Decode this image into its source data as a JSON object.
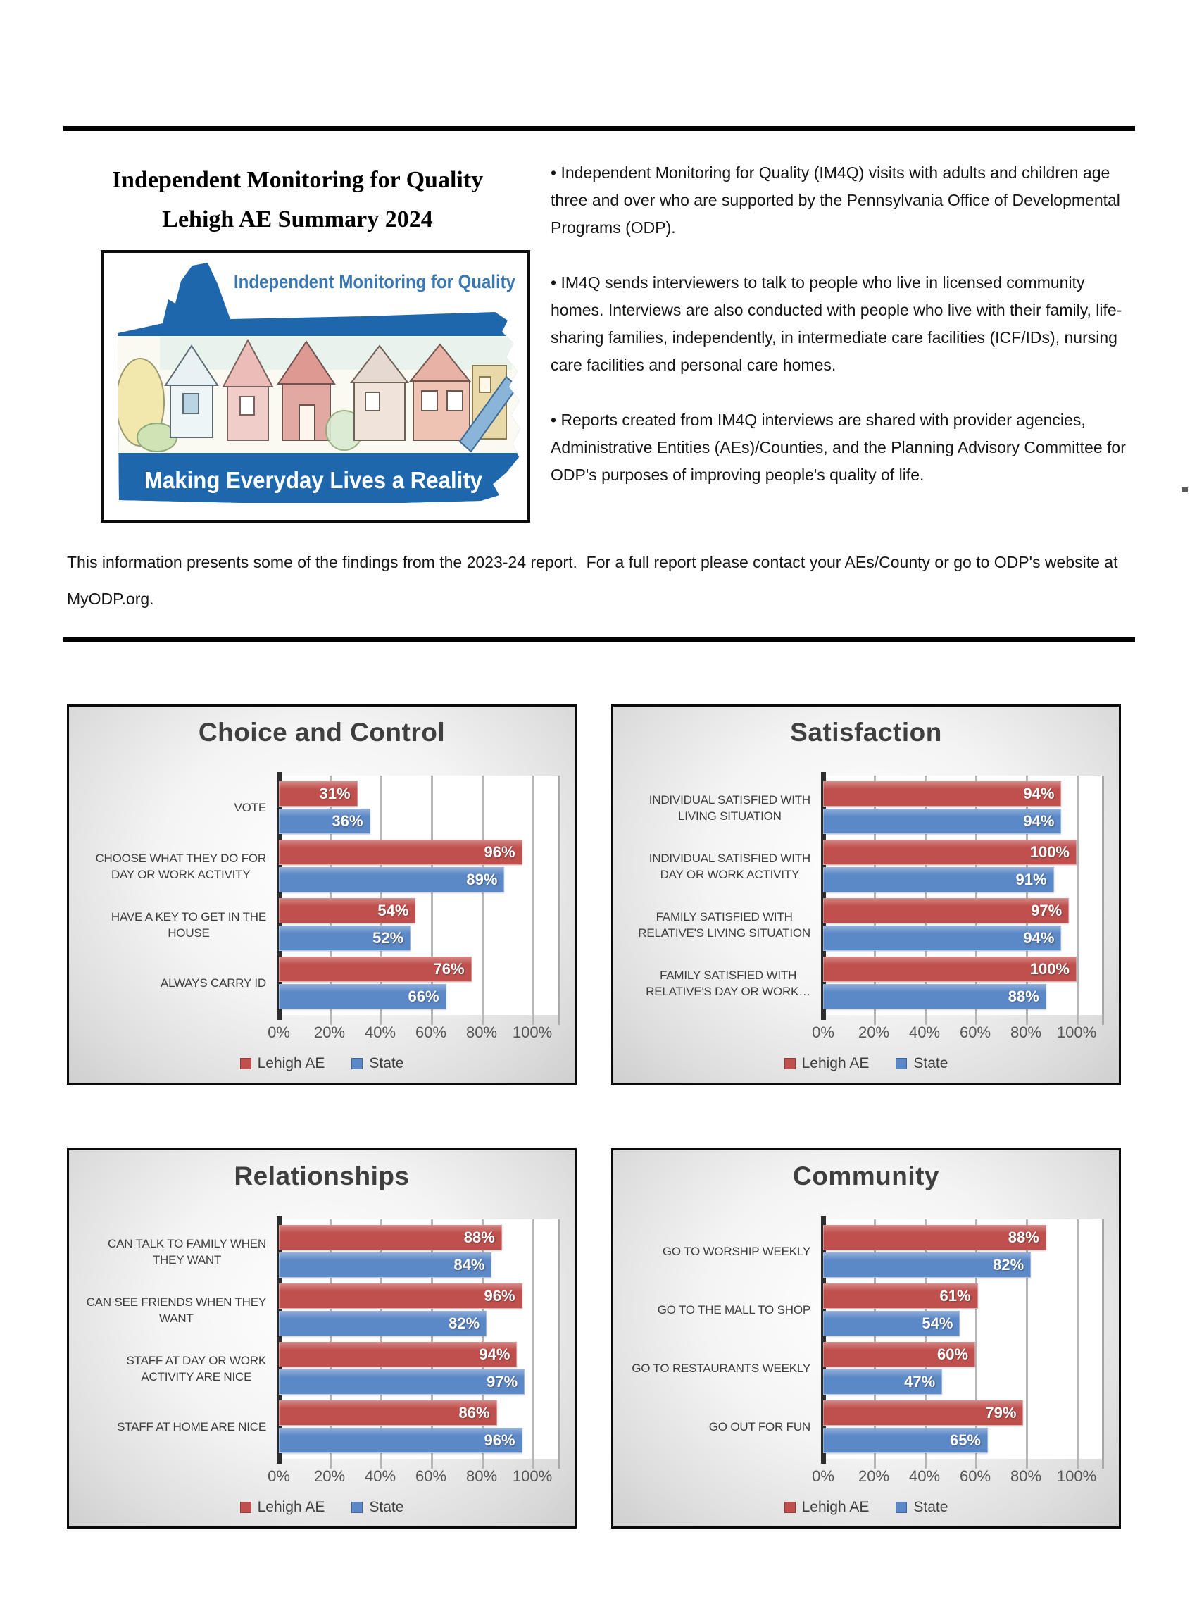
{
  "header": {
    "title_line1": "Independent Monitoring for Quality",
    "title_line2": "Lehigh AE Summary 2024",
    "logo": {
      "top_text": "Independent Monitoring for Quality",
      "bottom_text": "Making Everyday Lives a Reality"
    },
    "bullets": [
      "• Independent Monitoring for Quality (IM4Q) visits with adults and children age three and over who are supported by the Pennsylvania Office of Developmental Programs (ODP).",
      "• IM4Q sends interviewers to talk to people who live in licensed community homes. Interviews are also conducted with people who live with their family, life-sharing families, independently, in intermediate care facilities (ICF/IDs), nursing care facilities and personal care homes.",
      "• Reports created from IM4Q interviews are shared with provider agencies, Administrative Entities (AEs)/Counties, and the Planning Advisory Committee for ODP's purposes of improving people's quality of life."
    ],
    "note": "This information presents some of the findings from the 2023-24 report.  For a full report please contact your AEs/County or go to ODP's website at MyODP.org."
  },
  "legend": {
    "series1": "Lehigh AE",
    "series2": "State"
  },
  "colors": {
    "lehigh_red": "#C0504D",
    "state_blue": "#5B88C7",
    "logo_blue": "#1E67AD"
  },
  "chart_data": [
    {
      "type": "bar",
      "orientation": "horizontal",
      "title": "Choice and Control",
      "categories": [
        "VOTE",
        "CHOOSE WHAT THEY DO FOR DAY OR WORK ACTIVITY",
        "HAVE A KEY TO GET IN THE HOUSE",
        "ALWAYS CARRY ID"
      ],
      "category_lines": [
        [
          "VOTE"
        ],
        [
          "CHOOSE WHAT THEY DO FOR",
          "DAY OR WORK ACTIVITY"
        ],
        [
          "HAVE A KEY TO GET IN THE",
          "HOUSE"
        ],
        [
          "ALWAYS CARRY ID"
        ]
      ],
      "series": [
        {
          "name": "Lehigh AE",
          "color": "#C0504D",
          "values": [
            31,
            96,
            54,
            76
          ]
        },
        {
          "name": "State",
          "color": "#5B88C7",
          "values": [
            36,
            89,
            52,
            66
          ]
        }
      ],
      "xlim": [
        0,
        100
      ],
      "xticks": [
        "0%",
        "20%",
        "40%",
        "60%",
        "80%",
        "100%"
      ],
      "grid": true,
      "legend_position": "bottom"
    },
    {
      "type": "bar",
      "orientation": "horizontal",
      "title": "Satisfaction",
      "categories": [
        "INDIVIDUAL SATISFIED WITH LIVING SITUATION",
        "INDIVIDUAL SATISFIED WITH DAY OR WORK ACTIVITY",
        "FAMILY SATISFIED WITH RELATIVE'S LIVING SITUATION",
        "FAMILY SATISFIED WITH RELATIVE'S DAY OR WORK…"
      ],
      "category_lines": [
        [
          "INDIVIDUAL SATISFIED WITH",
          "LIVING SITUATION"
        ],
        [
          "INDIVIDUAL SATISFIED WITH",
          "DAY OR WORK ACTIVITY"
        ],
        [
          "FAMILY SATISFIED WITH",
          "RELATIVE'S LIVING SITUATION"
        ],
        [
          "FAMILY SATISFIED WITH",
          "RELATIVE'S DAY OR WORK…"
        ]
      ],
      "series": [
        {
          "name": "Lehigh AE",
          "color": "#C0504D",
          "values": [
            94,
            100,
            97,
            100
          ]
        },
        {
          "name": "State",
          "color": "#5B88C7",
          "values": [
            94,
            91,
            94,
            88
          ]
        }
      ],
      "xlim": [
        0,
        100
      ],
      "xticks": [
        "0%",
        "20%",
        "40%",
        "60%",
        "80%",
        "100%"
      ],
      "grid": true,
      "legend_position": "bottom"
    },
    {
      "type": "bar",
      "orientation": "horizontal",
      "title": "Relationships",
      "categories": [
        "CAN TALK TO FAMILY WHEN THEY WANT",
        "CAN SEE FRIENDS WHEN THEY WANT",
        "STAFF AT DAY OR WORK ACTIVITY ARE NICE",
        "STAFF AT HOME ARE NICE"
      ],
      "category_lines": [
        [
          "CAN TALK TO FAMILY WHEN",
          "THEY WANT"
        ],
        [
          "CAN SEE FRIENDS WHEN THEY",
          "WANT"
        ],
        [
          "STAFF AT DAY OR WORK",
          "ACTIVITY ARE NICE"
        ],
        [
          "STAFF AT HOME ARE NICE"
        ]
      ],
      "series": [
        {
          "name": "Lehigh AE",
          "color": "#C0504D",
          "values": [
            88,
            96,
            94,
            86
          ]
        },
        {
          "name": "State",
          "color": "#5B88C7",
          "values": [
            84,
            82,
            97,
            96
          ]
        }
      ],
      "xlim": [
        0,
        100
      ],
      "xticks": [
        "0%",
        "20%",
        "40%",
        "60%",
        "80%",
        "100%"
      ],
      "grid": true,
      "legend_position": "bottom"
    },
    {
      "type": "bar",
      "orientation": "horizontal",
      "title": "Community",
      "categories": [
        "GO TO WORSHIP WEEKLY",
        "GO TO THE MALL TO SHOP",
        "GO TO RESTAURANTS WEEKLY",
        "GO OUT FOR FUN"
      ],
      "category_lines": [
        [
          "GO TO WORSHIP WEEKLY"
        ],
        [
          "GO TO THE MALL TO SHOP"
        ],
        [
          "GO TO RESTAURANTS WEEKLY"
        ],
        [
          "GO OUT FOR FUN"
        ]
      ],
      "series": [
        {
          "name": "Lehigh AE",
          "color": "#C0504D",
          "values": [
            88,
            61,
            60,
            79
          ]
        },
        {
          "name": "State",
          "color": "#5B88C7",
          "values": [
            82,
            54,
            47,
            65
          ]
        }
      ],
      "xlim": [
        0,
        100
      ],
      "xticks": [
        "0%",
        "20%",
        "40%",
        "60%",
        "80%",
        "100%"
      ],
      "grid": true,
      "legend_position": "bottom"
    }
  ]
}
